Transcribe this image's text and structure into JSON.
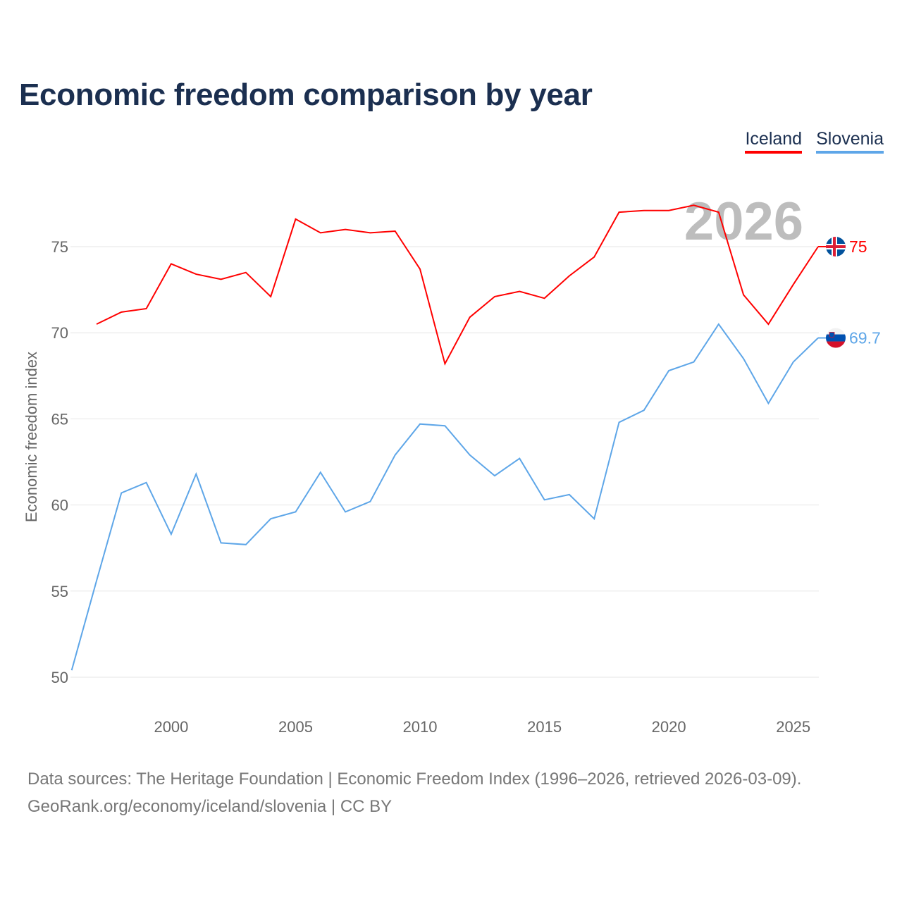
{
  "chart_data": {
    "type": "line",
    "title": "Economic freedom comparison by year",
    "xlabel": "",
    "ylabel": "Economic freedom index",
    "xlim": [
      1996,
      2026
    ],
    "ylim": [
      49,
      79
    ],
    "xticks": [
      2000,
      2005,
      2010,
      2015,
      2020,
      2025
    ],
    "yticks": [
      50,
      55,
      60,
      65,
      70,
      75
    ],
    "grid": true,
    "legend_position": "top-right",
    "watermark_year": "2026",
    "series": [
      {
        "name": "Iceland",
        "color": "#ff0000",
        "end_label": "75",
        "flag": "iceland",
        "x": [
          1997,
          1998,
          1999,
          2000,
          2001,
          2002,
          2003,
          2004,
          2005,
          2006,
          2007,
          2008,
          2009,
          2010,
          2011,
          2012,
          2013,
          2014,
          2015,
          2016,
          2017,
          2018,
          2019,
          2020,
          2021,
          2022,
          2023,
          2024,
          2025,
          2026
        ],
        "values": [
          70.5,
          71.2,
          71.4,
          74.0,
          73.4,
          73.1,
          73.5,
          72.1,
          76.6,
          75.8,
          76.0,
          75.8,
          75.9,
          73.7,
          68.2,
          70.9,
          72.1,
          72.4,
          72.0,
          73.3,
          74.4,
          77.0,
          77.1,
          77.1,
          77.4,
          77.0,
          72.2,
          70.5,
          72.8,
          75.0
        ]
      },
      {
        "name": "Slovenia",
        "color": "#5ea6e8",
        "end_label": "69.7",
        "flag": "slovenia",
        "x": [
          1996,
          1997,
          1998,
          1999,
          2000,
          2001,
          2002,
          2003,
          2004,
          2005,
          2006,
          2007,
          2008,
          2009,
          2010,
          2011,
          2012,
          2013,
          2014,
          2015,
          2016,
          2017,
          2018,
          2019,
          2020,
          2021,
          2022,
          2023,
          2024,
          2025,
          2026
        ],
        "values": [
          50.4,
          55.6,
          60.7,
          61.3,
          58.3,
          61.8,
          57.8,
          57.7,
          59.2,
          59.6,
          61.9,
          59.6,
          60.2,
          62.9,
          64.7,
          64.6,
          62.9,
          61.7,
          62.7,
          60.3,
          60.6,
          59.2,
          64.8,
          65.5,
          67.8,
          68.3,
          70.5,
          68.5,
          65.9,
          68.3,
          69.7
        ]
      }
    ]
  },
  "footer": {
    "line1": "Data sources: The Heritage Foundation | Economic Freedom Index (1996–2026, retrieved 2026-03-09).",
    "line2": "GeoRank.org/economy/iceland/slovenia | CC BY"
  }
}
